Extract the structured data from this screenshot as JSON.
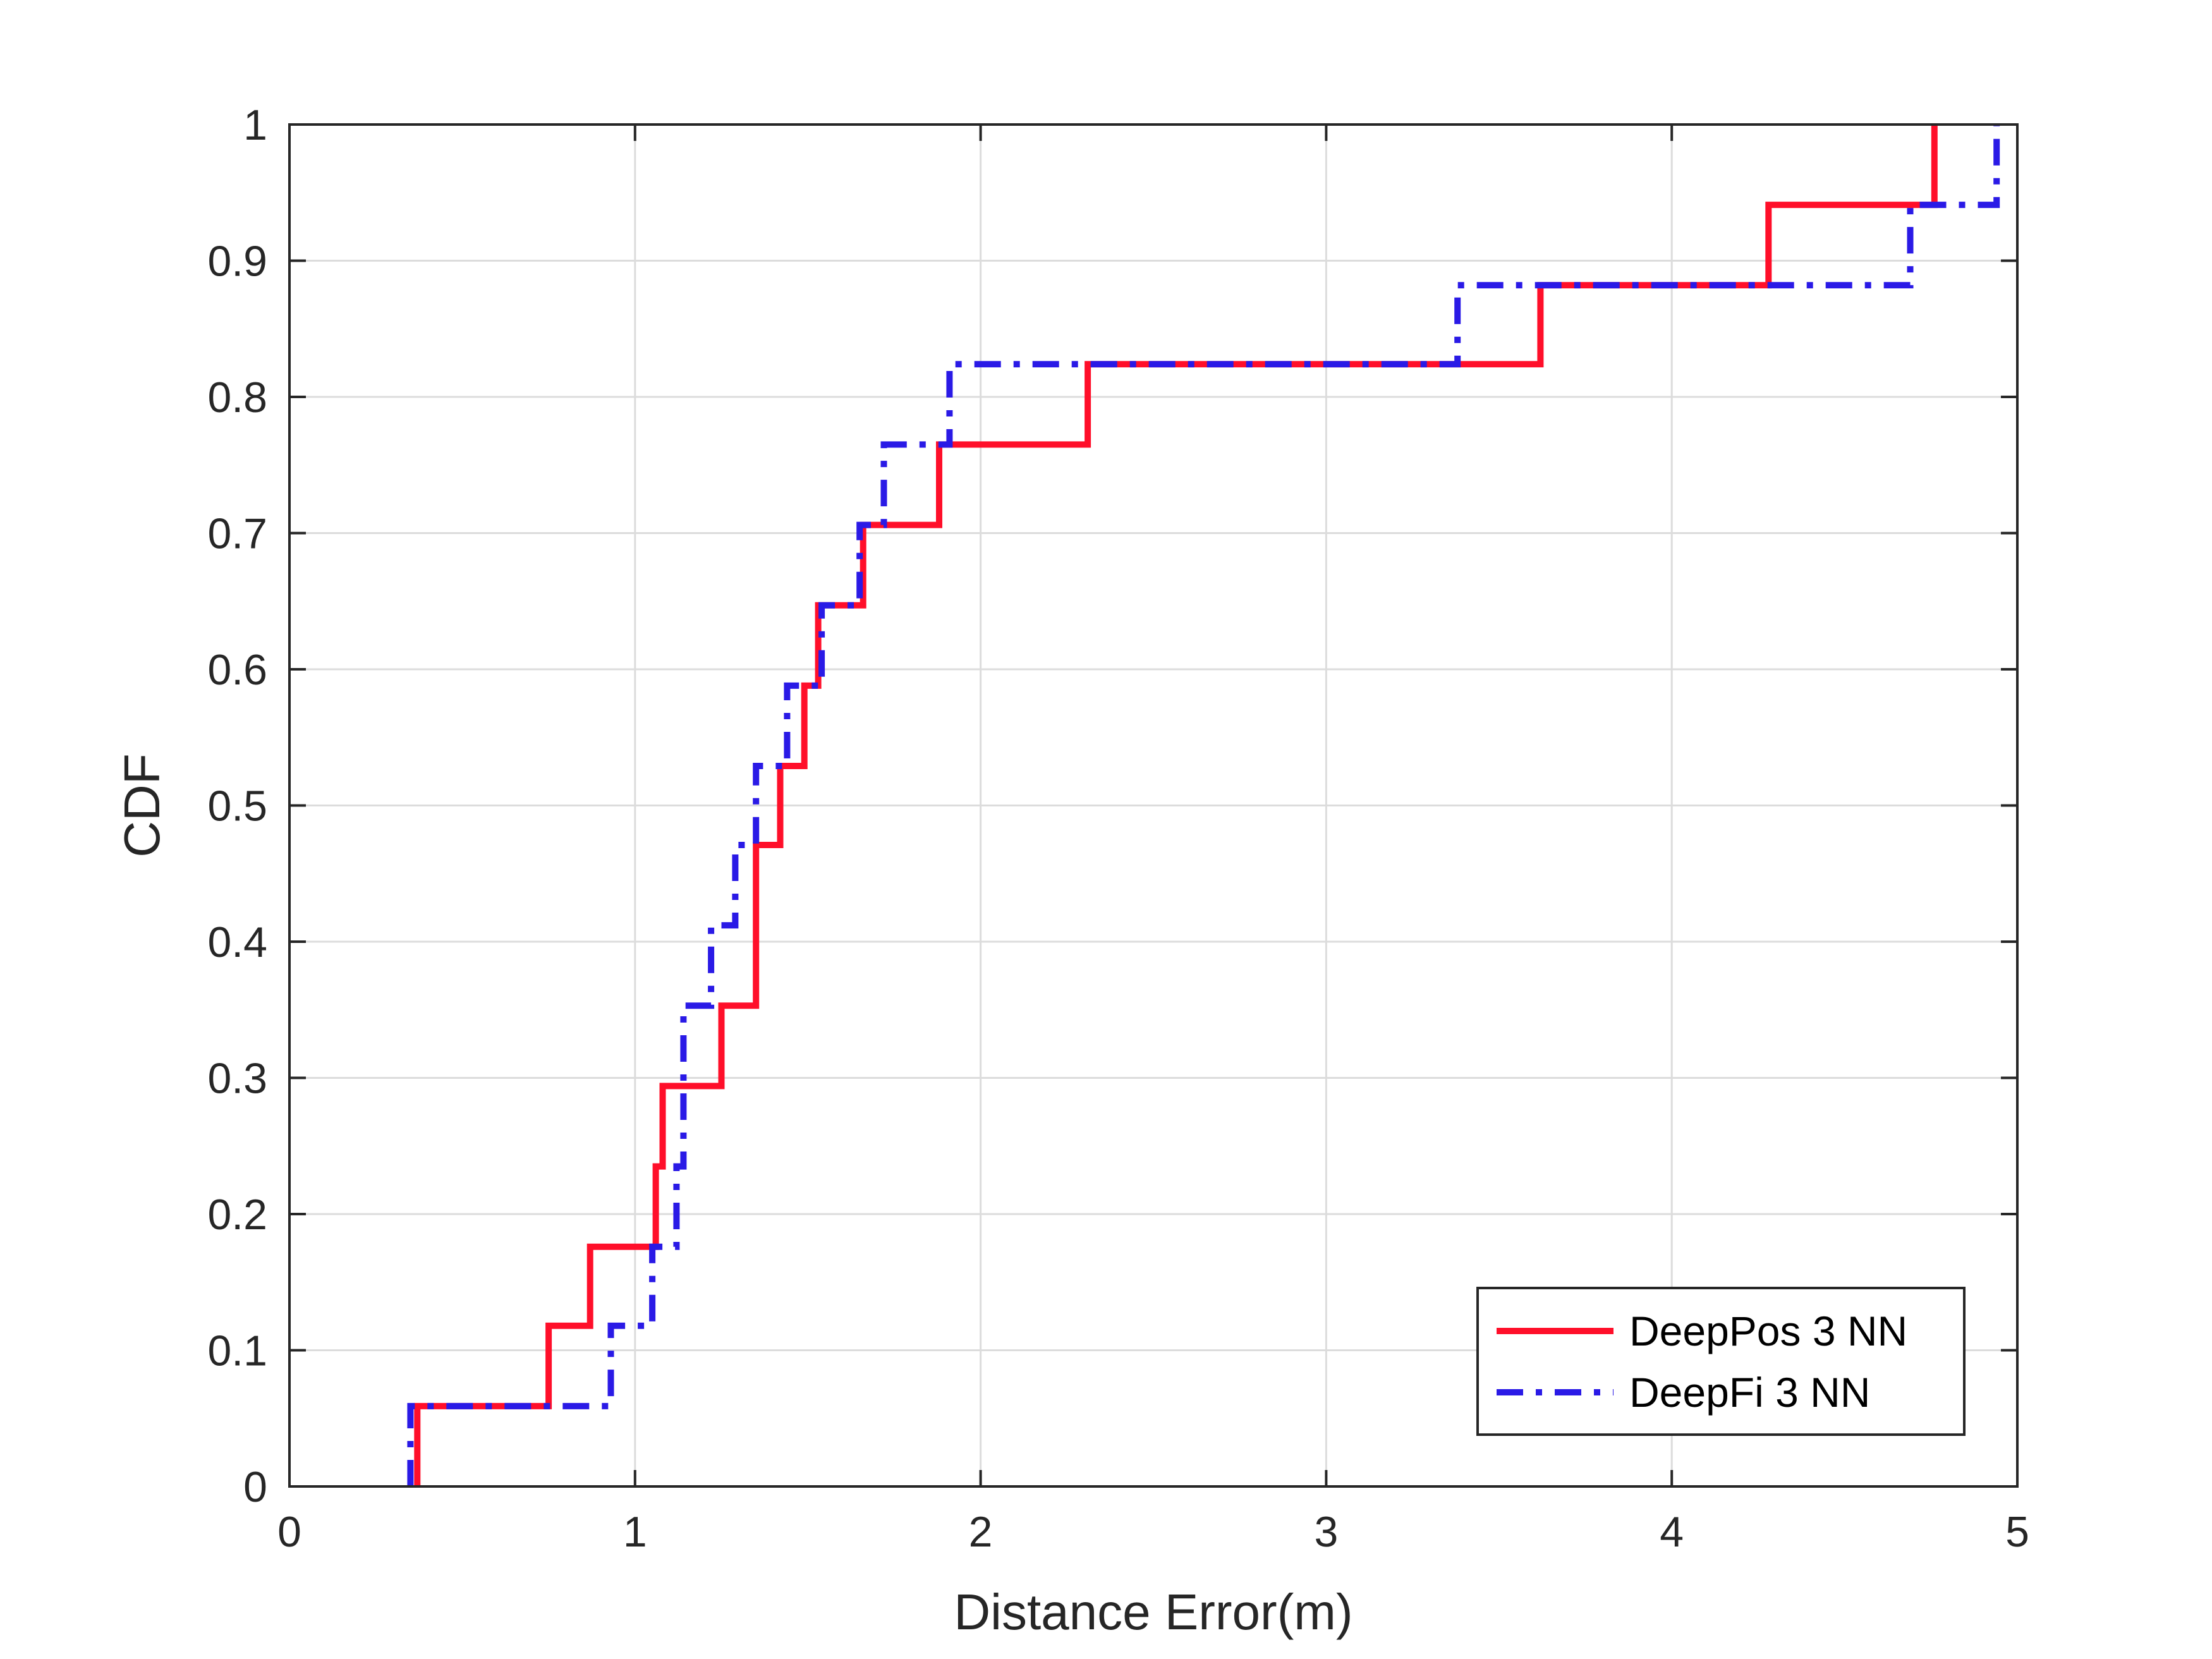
{
  "chart_data": {
    "type": "line",
    "step": "post",
    "xlabel": "Distance Error(m)",
    "ylabel": "CDF",
    "xlim": [
      0,
      5
    ],
    "ylim": [
      0,
      1
    ],
    "xticks": [
      0,
      1,
      2,
      3,
      4,
      5
    ],
    "yticks": [
      0,
      0.1,
      0.2,
      0.3,
      0.4,
      0.5,
      0.6,
      0.7,
      0.8,
      0.9,
      1
    ],
    "grid": true,
    "legend_position": "bottom-right",
    "series": [
      {
        "name": "DeepPos 3 NN",
        "color": "#ff0f2a",
        "dash": "solid",
        "x": [
          0.37,
          0.75,
          0.87,
          1.06,
          1.08,
          1.25,
          1.35,
          1.42,
          1.49,
          1.53,
          1.66,
          1.88,
          2.31,
          3.62,
          4.28,
          4.76
        ],
        "y": [
          0.059,
          0.118,
          0.176,
          0.235,
          0.294,
          0.353,
          0.471,
          0.529,
          0.588,
          0.647,
          0.706,
          0.765,
          0.824,
          0.882,
          0.941,
          1.0
        ]
      },
      {
        "name": "DeepFi 3 NN",
        "color": "#2a1ae6",
        "dash": "dashdot",
        "x": [
          0.35,
          0.93,
          1.05,
          1.12,
          1.14,
          1.22,
          1.29,
          1.35,
          1.44,
          1.54,
          1.65,
          1.72,
          1.91,
          3.38,
          4.69,
          4.94
        ],
        "y": [
          0.059,
          0.118,
          0.176,
          0.235,
          0.353,
          0.412,
          0.471,
          0.529,
          0.588,
          0.647,
          0.706,
          0.765,
          0.824,
          0.882,
          0.941,
          1.0
        ]
      }
    ]
  }
}
